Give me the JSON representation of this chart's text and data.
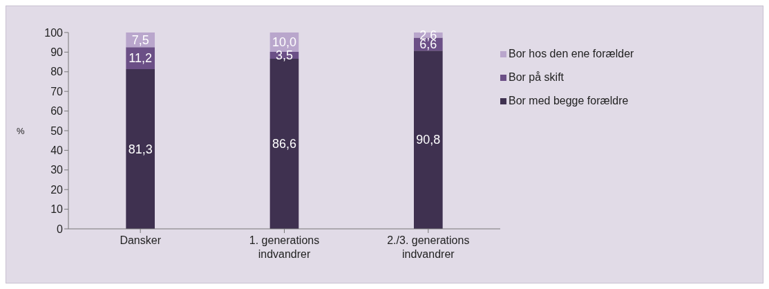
{
  "chart_data": {
    "type": "bar",
    "stacked": true,
    "ylabel": "%",
    "categories": [
      "Dansker",
      "1. generations indvandrer",
      "2./3. generations indvandrer"
    ],
    "series": [
      {
        "name": "Bor med begge forældre",
        "color": "#3f3150",
        "values": [
          81.3,
          86.6,
          90.8
        ],
        "value_labels": [
          "81,3",
          "86,6",
          "90,8"
        ]
      },
      {
        "name": "Bor på skift",
        "color": "#6b4f86",
        "values": [
          11.2,
          3.5,
          6.6
        ],
        "value_labels": [
          "11,2",
          "3,5",
          "6,6"
        ]
      },
      {
        "name": "Bor hos den ene forælder",
        "color": "#b9a6cc",
        "values": [
          7.5,
          10.0,
          2.6
        ],
        "value_labels": [
          "7,5",
          "10,0",
          "2,6"
        ]
      }
    ],
    "ylim": [
      0,
      100
    ],
    "yticks": [
      0,
      10,
      20,
      30,
      40,
      50,
      60,
      70,
      80,
      90,
      100
    ],
    "legend": "right",
    "grid": false
  }
}
